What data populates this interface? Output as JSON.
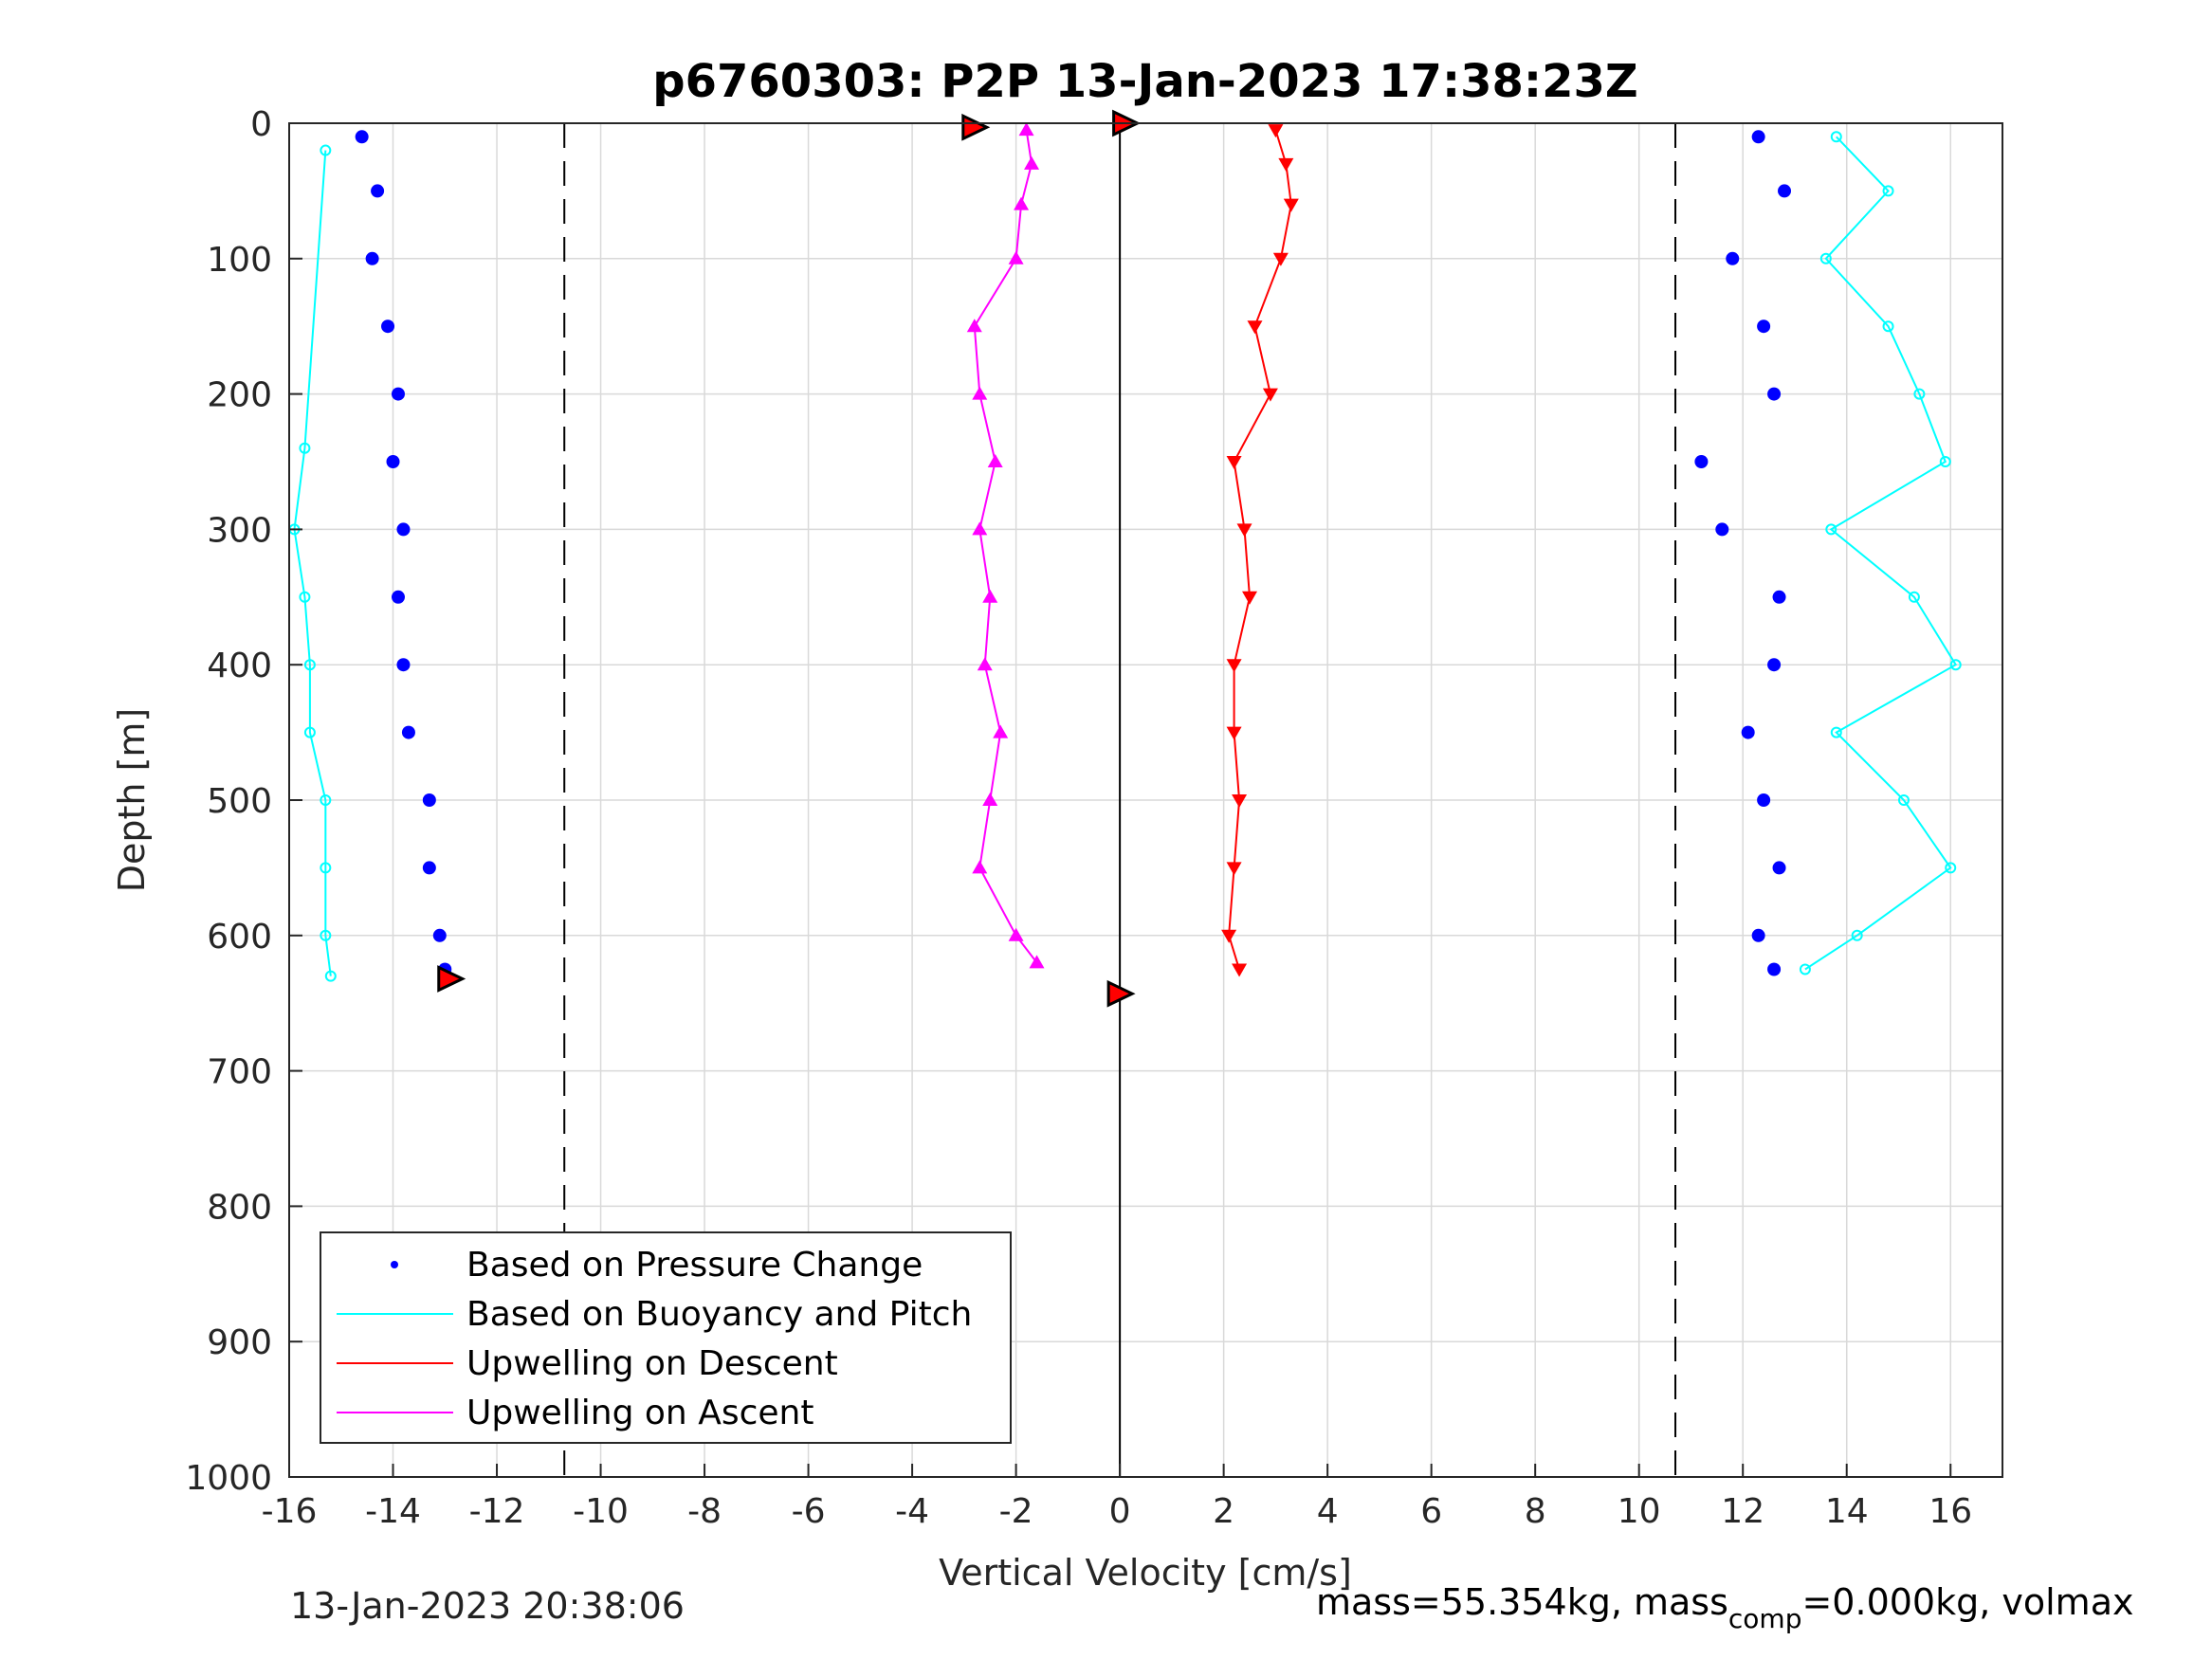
{
  "chart_data": {
    "type": "scatter",
    "title": "p6760303: P2P 13-Jan-2023 17:38:23Z",
    "xlabel": "Vertical Velocity [cm/s]",
    "ylabel": "Depth [m]",
    "xlim": [
      -16,
      17
    ],
    "ylim": [
      0,
      1000
    ],
    "y_reversed": true,
    "grid": true,
    "x_ticks": [
      -16,
      -14,
      -12,
      -10,
      -8,
      -6,
      -4,
      -2,
      0,
      2,
      4,
      6,
      8,
      10,
      12,
      14,
      16
    ],
    "y_ticks": [
      0,
      100,
      200,
      300,
      400,
      500,
      600,
      700,
      800,
      900,
      1000
    ],
    "reference_lines": [
      {
        "x": -10.7,
        "style": "dashed",
        "color": "#000000"
      },
      {
        "x": 0,
        "style": "solid",
        "color": "#000000"
      },
      {
        "x": 10.7,
        "style": "dashed",
        "color": "#000000"
      }
    ],
    "legend": {
      "placement": "bottom-left",
      "entries": [
        {
          "label": "Based on Pressure Change",
          "color": "#0000ff",
          "marker": "dot"
        },
        {
          "label": "Based on Buoyancy and Pitch",
          "color": "#00ffff",
          "marker": "line"
        },
        {
          "label": "Upwelling on Descent",
          "color": "#ff0000",
          "marker": "line"
        },
        {
          "label": "Upwelling on Ascent",
          "color": "#ff00ff",
          "marker": "line"
        }
      ]
    },
    "series": [
      {
        "name": "Based on Pressure Change",
        "role": "descent",
        "color": "#0000ff",
        "depth": [
          10,
          50,
          100,
          150,
          200,
          250,
          300,
          350,
          400,
          450,
          500,
          550,
          600,
          625
        ],
        "velocity": [
          -14.6,
          -14.3,
          -14.4,
          -14.1,
          -13.9,
          -14.0,
          -13.8,
          -13.9,
          -13.8,
          -13.7,
          -13.3,
          -13.3,
          -13.1,
          -13.0
        ]
      },
      {
        "name": "Based on Pressure Change",
        "role": "ascent",
        "color": "#0000ff",
        "depth": [
          10,
          50,
          100,
          150,
          200,
          250,
          300,
          350,
          400,
          450,
          500,
          550,
          600,
          625
        ],
        "velocity": [
          12.3,
          12.8,
          11.8,
          12.4,
          12.6,
          11.2,
          11.6,
          12.7,
          12.6,
          12.1,
          12.4,
          12.7,
          12.3,
          12.6
        ]
      },
      {
        "name": "Based on Buoyancy and Pitch",
        "role": "descent",
        "color": "#00ffff",
        "depth": [
          20,
          240,
          300,
          350,
          400,
          450,
          500,
          550,
          600,
          630
        ],
        "velocity": [
          -15.3,
          -15.7,
          -15.9,
          -15.7,
          -15.6,
          -15.6,
          -15.3,
          -15.3,
          -15.3,
          -15.2
        ]
      },
      {
        "name": "Based on Buoyancy and Pitch",
        "role": "ascent",
        "color": "#00ffff",
        "depth": [
          10,
          50,
          100,
          150,
          200,
          250,
          300,
          350,
          400,
          450,
          500,
          550,
          600,
          625
        ],
        "velocity": [
          13.8,
          14.8,
          13.6,
          14.8,
          15.4,
          15.9,
          13.7,
          15.3,
          16.1,
          13.8,
          15.1,
          16.0,
          14.2,
          13.2
        ]
      },
      {
        "name": "Upwelling on Descent",
        "color": "#ff0000",
        "depth": [
          5,
          30,
          60,
          100,
          150,
          200,
          250,
          300,
          350,
          400,
          450,
          500,
          550,
          600,
          625
        ],
        "velocity": [
          3.0,
          3.2,
          3.3,
          3.1,
          2.6,
          2.9,
          2.2,
          2.4,
          2.5,
          2.2,
          2.2,
          2.3,
          2.2,
          2.1,
          2.3
        ]
      },
      {
        "name": "Upwelling on Ascent",
        "color": "#ff00ff",
        "depth": [
          5,
          30,
          60,
          100,
          150,
          200,
          250,
          300,
          350,
          400,
          450,
          500,
          550,
          600,
          620
        ],
        "velocity": [
          -1.8,
          -1.7,
          -1.9,
          -2.0,
          -2.8,
          -2.7,
          -2.4,
          -2.7,
          -2.5,
          -2.6,
          -2.3,
          -2.5,
          -2.7,
          -2.0,
          -1.6
        ]
      }
    ],
    "turnaround_points": [
      {
        "velocity": -2.8,
        "depth": 3
      },
      {
        "velocity": 0.1,
        "depth": 0
      },
      {
        "velocity": -12.9,
        "depth": 632
      },
      {
        "velocity": 0,
        "depth": 643
      }
    ]
  },
  "footer": {
    "timestamp": "13-Jan-2023 20:38:06",
    "mass_text": "mass=55.354kg, mass",
    "mass_sub": "comp",
    "mass_rest": "=0.000kg, volmax"
  }
}
